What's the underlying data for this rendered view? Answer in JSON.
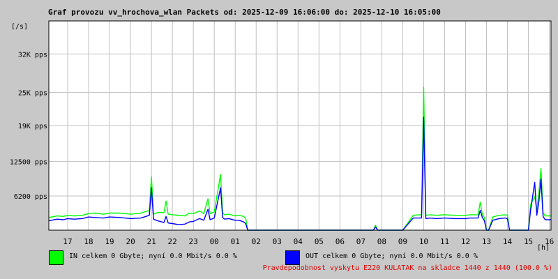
{
  "chart_data": {
    "type": "line",
    "title": "Graf provozu vv_hrochova_wlan Packets od: 2025-12-09 16:06:00 do: 2025-12-10 16:05:00",
    "ylabel": "[/s]",
    "xlabel": "[h]",
    "yticks": [
      "6200 pps",
      "12500 pps",
      "19K pps",
      "25K pps",
      "32K pps"
    ],
    "ytick_values": [
      6200,
      12500,
      19000,
      25000,
      32000
    ],
    "ylim": [
      0,
      38000
    ],
    "x_hour_labels": [
      "17",
      "18",
      "19",
      "20",
      "21",
      "22",
      "23",
      "00",
      "01",
      "02",
      "03",
      "04",
      "05",
      "06",
      "07",
      "08",
      "09",
      "10",
      "11",
      "12",
      "13",
      "14",
      "15",
      "16"
    ],
    "x_hour_positions": [
      17,
      18,
      19,
      20,
      21,
      22,
      23,
      24,
      25,
      26,
      27,
      28,
      29,
      30,
      31,
      32,
      33,
      34,
      35,
      36,
      37,
      38,
      39,
      40
    ],
    "xlim": [
      16.1,
      40.08
    ],
    "grid": true,
    "series": [
      {
        "name": "IN",
        "color": "#00ff00",
        "x": [
          16.1,
          16.5,
          16.8,
          17.0,
          17.3,
          17.7,
          18.0,
          18.3,
          18.7,
          19.0,
          19.5,
          20.0,
          20.5,
          20.9,
          21.0,
          21.1,
          21.3,
          21.6,
          21.7,
          21.8,
          22.0,
          22.3,
          22.6,
          22.8,
          23.0,
          23.3,
          23.5,
          23.7,
          23.8,
          24.0,
          24.3,
          24.4,
          24.5,
          24.7,
          25.0,
          25.2,
          25.4,
          25.5,
          25.6,
          25.8,
          26.0,
          31.6,
          31.7,
          31.8,
          32.0,
          32.5,
          33.0,
          33.5,
          33.8,
          33.9,
          34.0,
          34.1,
          34.3,
          34.6,
          35.0,
          35.5,
          36.0,
          36.2,
          36.4,
          36.6,
          36.7,
          36.8,
          36.9,
          37.0,
          37.1,
          37.3,
          37.6,
          37.9,
          38.0,
          38.1,
          38.3,
          38.9,
          39.0,
          39.1,
          39.3,
          39.4,
          39.5,
          39.6,
          39.7,
          39.8,
          40.08
        ],
        "values": [
          2300,
          2600,
          2500,
          2700,
          2600,
          2700,
          3000,
          3100,
          2900,
          3100,
          3100,
          2900,
          3100,
          3600,
          9700,
          2900,
          3200,
          3200,
          5300,
          2900,
          2800,
          2700,
          2600,
          3100,
          3000,
          3500,
          3000,
          5700,
          3000,
          3300,
          10100,
          3100,
          2800,
          2900,
          2600,
          2700,
          2500,
          2200,
          0,
          0,
          0,
          0,
          900,
          0,
          0,
          0,
          0,
          2700,
          2800,
          2800,
          26000,
          2700,
          2800,
          2700,
          2800,
          2700,
          2700,
          2800,
          2800,
          2800,
          5100,
          2900,
          2300,
          0,
          0,
          2400,
          2700,
          2800,
          2700,
          0,
          0,
          0,
          0,
          4600,
          6100,
          3500,
          6800,
          11200,
          3200,
          2600,
          2600
        ]
      },
      {
        "name": "OUT",
        "color": "#0000ff",
        "x": [
          16.1,
          16.5,
          16.8,
          17.0,
          17.3,
          17.7,
          18.0,
          18.3,
          18.7,
          19.0,
          19.5,
          20.0,
          20.5,
          20.9,
          21.0,
          21.1,
          21.3,
          21.6,
          21.7,
          21.8,
          22.0,
          22.3,
          22.6,
          22.8,
          23.0,
          23.3,
          23.5,
          23.7,
          23.8,
          24.0,
          24.3,
          24.4,
          24.5,
          24.7,
          25.0,
          25.2,
          25.4,
          25.5,
          25.6,
          25.8,
          26.0,
          31.6,
          31.7,
          31.8,
          32.0,
          32.5,
          33.0,
          33.5,
          33.8,
          33.9,
          34.0,
          34.1,
          34.3,
          34.6,
          35.0,
          35.5,
          36.0,
          36.2,
          36.4,
          36.6,
          36.7,
          36.8,
          36.9,
          37.0,
          37.1,
          37.3,
          37.6,
          37.9,
          38.0,
          38.1,
          38.3,
          38.9,
          39.0,
          39.1,
          39.3,
          39.4,
          39.5,
          39.6,
          39.7,
          39.8,
          40.08
        ],
        "values": [
          1700,
          2000,
          1900,
          2100,
          2000,
          2100,
          2400,
          2300,
          2200,
          2400,
          2300,
          2100,
          2200,
          2700,
          7700,
          2000,
          1700,
          1400,
          2500,
          1300,
          1200,
          1000,
          1100,
          1500,
          1600,
          2100,
          1800,
          3800,
          1900,
          2200,
          7700,
          2300,
          2000,
          2100,
          1800,
          1800,
          1500,
          1200,
          0,
          0,
          0,
          0,
          600,
          0,
          0,
          0,
          0,
          2200,
          2200,
          2200,
          20500,
          2100,
          2200,
          2100,
          2200,
          2100,
          2100,
          2200,
          2200,
          2200,
          3600,
          2300,
          1700,
          0,
          0,
          1800,
          2100,
          2200,
          2100,
          0,
          0,
          0,
          0,
          3500,
          8700,
          2700,
          5200,
          9300,
          2500,
          1900,
          1900
        ]
      }
    ],
    "legend": [
      {
        "label": "IN celkem 0 Gbyte; nyní   0.0 Mbit/s 0.0 %",
        "color": "#00ff00"
      },
      {
        "label": "OUT celkem 0 Gbyte; nyní   0.0 Mbit/s 0.0 %",
        "color": "#0000ff"
      }
    ],
    "footer": "Pravdepodobnost vyskytu E220 KULATAK na skladce 1440 z 1440 (100.0 %)"
  }
}
